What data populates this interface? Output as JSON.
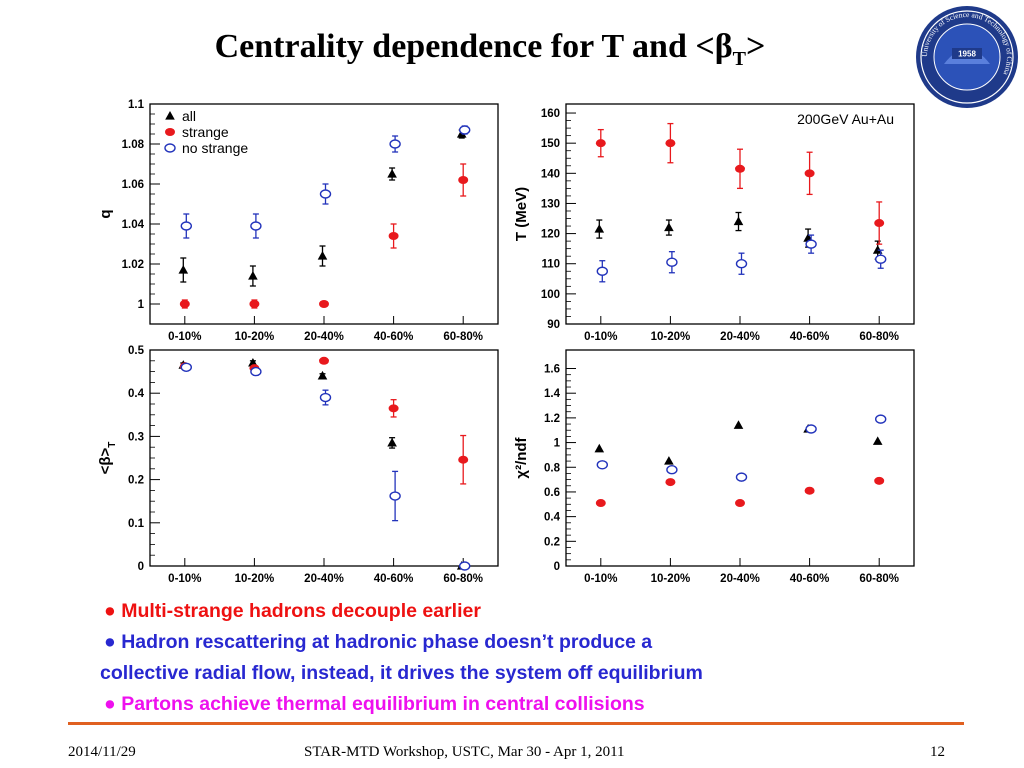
{
  "title": {
    "main": "Centrality dependence for T and <β",
    "sub": "T",
    "end": ">"
  },
  "logo": {
    "year": "1958",
    "ring_text": "University of Science and Technology of China"
  },
  "colors": {
    "all": "#000000",
    "strange": "#e8191d",
    "nostrange": "#2233bb",
    "b1": "#ee1111",
    "b2": "#2828d0",
    "b3": "#ee10ee",
    "rule": "#e06020"
  },
  "chart_data": [
    {
      "id": "q",
      "type": "scatter",
      "categories": [
        "0-10%",
        "10-20%",
        "20-40%",
        "40-60%",
        "60-80%"
      ],
      "ylabel": "q",
      "ylim": [
        0.99,
        1.1
      ],
      "yticks": [
        "1",
        "1.02",
        "1.04",
        "1.06",
        "1.08",
        "1.1"
      ],
      "annotation": "",
      "legend": {
        "position": "top-left",
        "entries": [
          "all",
          "strange",
          "no strange"
        ]
      },
      "series": [
        {
          "name": "all",
          "marker": "triangle",
          "values": [
            1.017,
            1.014,
            1.024,
            1.065,
            1.085
          ],
          "errors": [
            0.006,
            0.005,
            0.005,
            0.003,
            0.002
          ]
        },
        {
          "name": "strange",
          "marker": "filled-circle",
          "values": [
            1.0,
            1.0,
            1.0,
            1.034,
            1.062
          ],
          "errors": [
            0.002,
            0.002,
            0.001,
            0.006,
            0.008
          ]
        },
        {
          "name": "no strange",
          "marker": "open-circle",
          "values": [
            1.039,
            1.039,
            1.055,
            1.08,
            1.087
          ],
          "errors": [
            0.006,
            0.006,
            0.005,
            0.004,
            0.002
          ]
        }
      ]
    },
    {
      "id": "T",
      "type": "scatter",
      "categories": [
        "0-10%",
        "10-20%",
        "20-40%",
        "40-60%",
        "60-80%"
      ],
      "ylabel": "T (MeV)",
      "ylim": [
        90,
        163
      ],
      "yticks": [
        "90",
        "100",
        "110",
        "120",
        "130",
        "140",
        "150",
        "160"
      ],
      "annotation": "200GeV Au+Au",
      "series": [
        {
          "name": "all",
          "marker": "triangle",
          "values": [
            121.5,
            122,
            124,
            118.5,
            114.5
          ],
          "errors": [
            3,
            2.5,
            3,
            3,
            3
          ]
        },
        {
          "name": "strange",
          "marker": "filled-circle",
          "values": [
            150,
            150,
            141.5,
            140,
            123.5
          ],
          "errors": [
            4.5,
            6.5,
            6.5,
            7,
            7
          ]
        },
        {
          "name": "no strange",
          "marker": "open-circle",
          "values": [
            107.5,
            110.5,
            110,
            116.5,
            111.5
          ],
          "errors": [
            3.5,
            3.5,
            3.5,
            3,
            3
          ]
        }
      ]
    },
    {
      "id": "beta",
      "type": "scatter",
      "categories": [
        "0-10%",
        "10-20%",
        "20-40%",
        "40-60%",
        "60-80%"
      ],
      "ylabel": "<β>",
      "ylabel_sub": "T",
      "ylim": [
        0,
        0.5
      ],
      "yticks": [
        "0",
        "0.1",
        "0.2",
        "0.3",
        "0.4",
        "0.5"
      ],
      "annotation": "",
      "series": [
        {
          "name": "all",
          "marker": "triangle",
          "values": [
            0.465,
            0.47,
            0.44,
            0.285,
            0
          ],
          "errors": [
            0.005,
            0.005,
            0.005,
            0.012,
            0
          ]
        },
        {
          "name": "strange",
          "marker": "filled-circle",
          "values": [
            0.462,
            0.458,
            0.475,
            0.365,
            0.246
          ],
          "errors": [
            0.005,
            0.005,
            0.004,
            0.02,
            0.056
          ]
        },
        {
          "name": "no strange",
          "marker": "open-circle",
          "values": [
            0.46,
            0.45,
            0.39,
            0.162,
            0.0
          ],
          "errors": [
            0.005,
            0.008,
            0.017,
            0.057,
            0.004
          ]
        }
      ]
    },
    {
      "id": "chi2",
      "type": "scatter",
      "categories": [
        "0-10%",
        "10-20%",
        "20-40%",
        "40-60%",
        "60-80%"
      ],
      "ylabel": "χ²/ndf",
      "ylim": [
        0,
        1.75
      ],
      "yticks": [
        "0",
        "0.2",
        "0.4",
        "0.6",
        "0.8",
        "1",
        "1.2",
        "1.4",
        "1.6"
      ],
      "annotation": "",
      "series": [
        {
          "name": "all",
          "marker": "triangle",
          "values": [
            0.95,
            0.85,
            1.14,
            1.11,
            1.01
          ],
          "errors": [
            0,
            0,
            0,
            0,
            0
          ]
        },
        {
          "name": "strange",
          "marker": "filled-circle",
          "values": [
            0.51,
            0.68,
            0.51,
            0.61,
            0.69
          ],
          "errors": [
            0,
            0,
            0,
            0,
            0
          ]
        },
        {
          "name": "no strange",
          "marker": "open-circle",
          "values": [
            0.82,
            0.78,
            0.72,
            1.11,
            1.19
          ],
          "errors": [
            0,
            0,
            0,
            0,
            0
          ]
        }
      ]
    }
  ],
  "bullets": [
    {
      "bullet": "●",
      "text": "Multi-strange hadrons decouple earlier"
    },
    {
      "bullet": "●",
      "text": "Hadron rescattering at hadronic phase doesn’t produce a"
    },
    {
      "text": "collective radial flow, instead, it drives the system off equilibrium"
    },
    {
      "bullet": "●",
      "text": "Partons achieve thermal equilibrium in central collisions"
    }
  ],
  "footer": {
    "date": "2014/11/29",
    "conference": "STAR-MTD Workshop, USTC, Mar 30 - Apr 1, 2011",
    "page": "12"
  }
}
